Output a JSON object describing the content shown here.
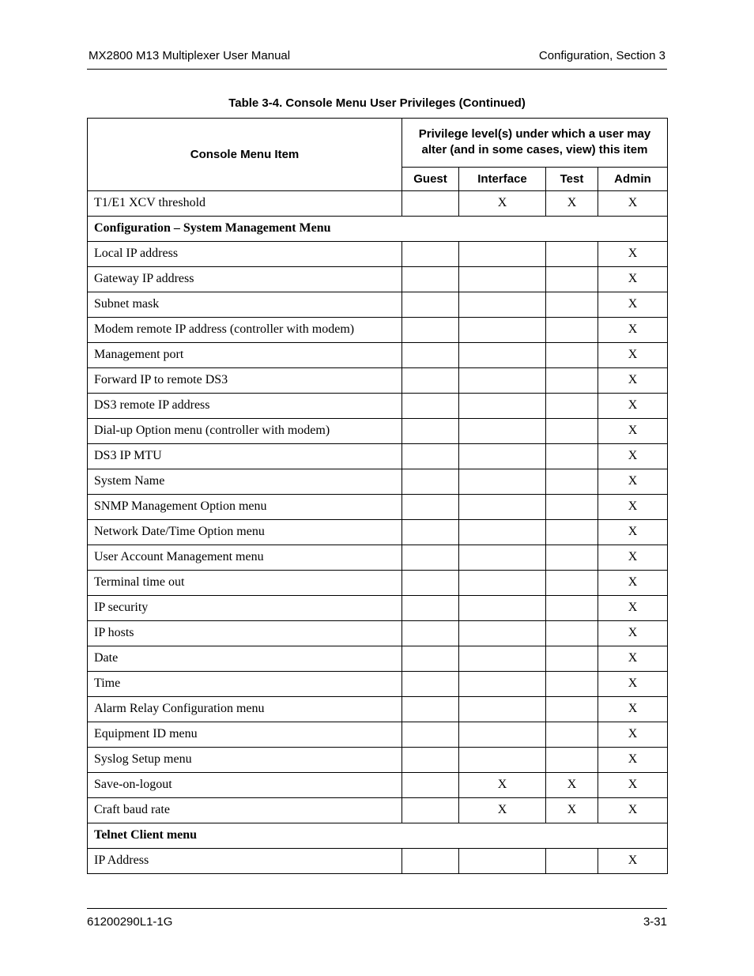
{
  "header": {
    "left": "MX2800 M13 Multiplexer User Manual",
    "right": "Configuration, Section 3"
  },
  "caption": "Table 3-4.  Console Menu User Privileges (Continued)",
  "table": {
    "header": {
      "menu_item": "Console Menu Item",
      "priv_head": "Privilege level(s) under which a user may alter (and in some cases, view) this item",
      "cols": {
        "guest": "Guest",
        "interface": "Interface",
        "test": "Test",
        "admin": "Admin"
      }
    },
    "mark": "X",
    "rows": [
      {
        "section": false,
        "item": "T1/E1 XCV threshold",
        "guest": "",
        "interface": "X",
        "test": "X",
        "admin": "X"
      },
      {
        "section": true,
        "item": "Configuration – System Management Menu"
      },
      {
        "section": false,
        "item": "Local IP address",
        "guest": "",
        "interface": "",
        "test": "",
        "admin": "X"
      },
      {
        "section": false,
        "item": "Gateway IP address",
        "guest": "",
        "interface": "",
        "test": "",
        "admin": "X"
      },
      {
        "section": false,
        "item": "Subnet mask",
        "guest": "",
        "interface": "",
        "test": "",
        "admin": "X"
      },
      {
        "section": false,
        "item": "Modem remote IP address (controller with modem)",
        "guest": "",
        "interface": "",
        "test": "",
        "admin": "X"
      },
      {
        "section": false,
        "item": "Management port",
        "guest": "",
        "interface": "",
        "test": "",
        "admin": "X"
      },
      {
        "section": false,
        "item": "Forward IP to remote DS3",
        "guest": "",
        "interface": "",
        "test": "",
        "admin": "X"
      },
      {
        "section": false,
        "item": "DS3 remote IP address",
        "guest": "",
        "interface": "",
        "test": "",
        "admin": "X"
      },
      {
        "section": false,
        "item": "Dial-up Option menu (controller with modem)",
        "guest": "",
        "interface": "",
        "test": "",
        "admin": "X"
      },
      {
        "section": false,
        "item": "DS3 IP MTU",
        "guest": "",
        "interface": "",
        "test": "",
        "admin": "X"
      },
      {
        "section": false,
        "item": "System Name",
        "guest": "",
        "interface": "",
        "test": "",
        "admin": "X"
      },
      {
        "section": false,
        "item": "SNMP Management Option menu",
        "guest": "",
        "interface": "",
        "test": "",
        "admin": "X"
      },
      {
        "section": false,
        "item": "Network Date/Time Option menu",
        "guest": "",
        "interface": "",
        "test": "",
        "admin": "X"
      },
      {
        "section": false,
        "item": "User Account Management menu",
        "guest": "",
        "interface": "",
        "test": "",
        "admin": "X"
      },
      {
        "section": false,
        "item": "Terminal time out",
        "guest": "",
        "interface": "",
        "test": "",
        "admin": "X"
      },
      {
        "section": false,
        "item": "IP security",
        "guest": "",
        "interface": "",
        "test": "",
        "admin": "X"
      },
      {
        "section": false,
        "item": "IP hosts",
        "guest": "",
        "interface": "",
        "test": "",
        "admin": "X"
      },
      {
        "section": false,
        "item": "Date",
        "guest": "",
        "interface": "",
        "test": "",
        "admin": "X"
      },
      {
        "section": false,
        "item": "Time",
        "guest": "",
        "interface": "",
        "test": "",
        "admin": "X"
      },
      {
        "section": false,
        "item": "Alarm Relay Configuration menu",
        "guest": "",
        "interface": "",
        "test": "",
        "admin": "X"
      },
      {
        "section": false,
        "item": "Equipment ID menu",
        "guest": "",
        "interface": "",
        "test": "",
        "admin": "X"
      },
      {
        "section": false,
        "item": "Syslog Setup menu",
        "guest": "",
        "interface": "",
        "test": "",
        "admin": "X"
      },
      {
        "section": false,
        "item": "Save-on-logout",
        "guest": "",
        "interface": "X",
        "test": "X",
        "admin": "X"
      },
      {
        "section": false,
        "item": "Craft baud rate",
        "guest": "",
        "interface": "X",
        "test": "X",
        "admin": "X"
      },
      {
        "section": true,
        "item": "Telnet Client menu"
      },
      {
        "section": false,
        "item": "IP Address",
        "guest": "",
        "interface": "",
        "test": "",
        "admin": "X"
      }
    ]
  },
  "footer": {
    "left": "61200290L1-1G",
    "right": "3-31"
  }
}
